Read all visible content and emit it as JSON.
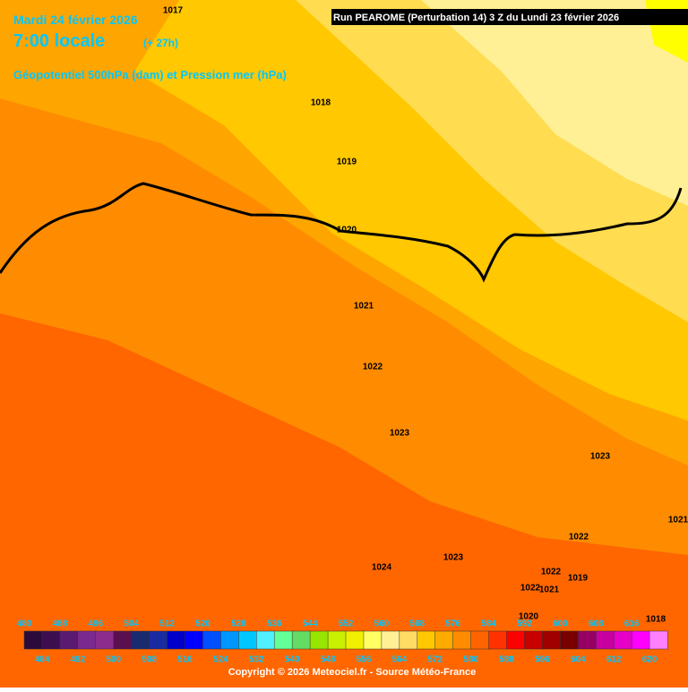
{
  "header": {
    "date": "Mardi 24 février 2026",
    "time": "7:00 locale",
    "lead": "(+ 27h)",
    "field": "Géopotentiel 500hPa (dam) et Pression mer (hPa)",
    "run": "Run PEAROME (Perturbation 14) 3 Z du Lundi 23 février 2026"
  },
  "isobars": [
    "1017",
    "1018",
    "1019",
    "1020",
    "1021",
    "1022",
    "1023",
    "1023",
    "1024",
    "1023",
    "1022",
    "1022",
    "1019",
    "1022",
    "1021",
    "1020",
    "1018",
    "1021"
  ],
  "colorbar": {
    "values": [
      480,
      484,
      488,
      492,
      496,
      500,
      504,
      508,
      512,
      516,
      520,
      524,
      528,
      532,
      536,
      540,
      544,
      548,
      552,
      556,
      560,
      564,
      568,
      572,
      576,
      580,
      584,
      588,
      592,
      596,
      600,
      604,
      608,
      612,
      616,
      620
    ],
    "colors": [
      "#2d0a3c",
      "#3c0d4f",
      "#5a1a72",
      "#7a2a8f",
      "#8c2c8c",
      "#5a1050",
      "#1a2a6e",
      "#1a2aa0",
      "#0000c8",
      "#0000ff",
      "#0050ff",
      "#0096ff",
      "#00c8ff",
      "#50f0ff",
      "#64ff96",
      "#64dc64",
      "#96e600",
      "#c8f000",
      "#f0f000",
      "#ffff64",
      "#fff096",
      "#ffdc64",
      "#ffc800",
      "#ffaa00",
      "#ff8c00",
      "#ff6400",
      "#ff3200",
      "#ff0000",
      "#c80000",
      "#a00000",
      "#780000",
      "#960064",
      "#c800a0",
      "#e600c8",
      "#ff00ff",
      "#ff80ff"
    ]
  },
  "footer": "Copyright © 2026 Meteociel.fr - Source Météo-France"
}
